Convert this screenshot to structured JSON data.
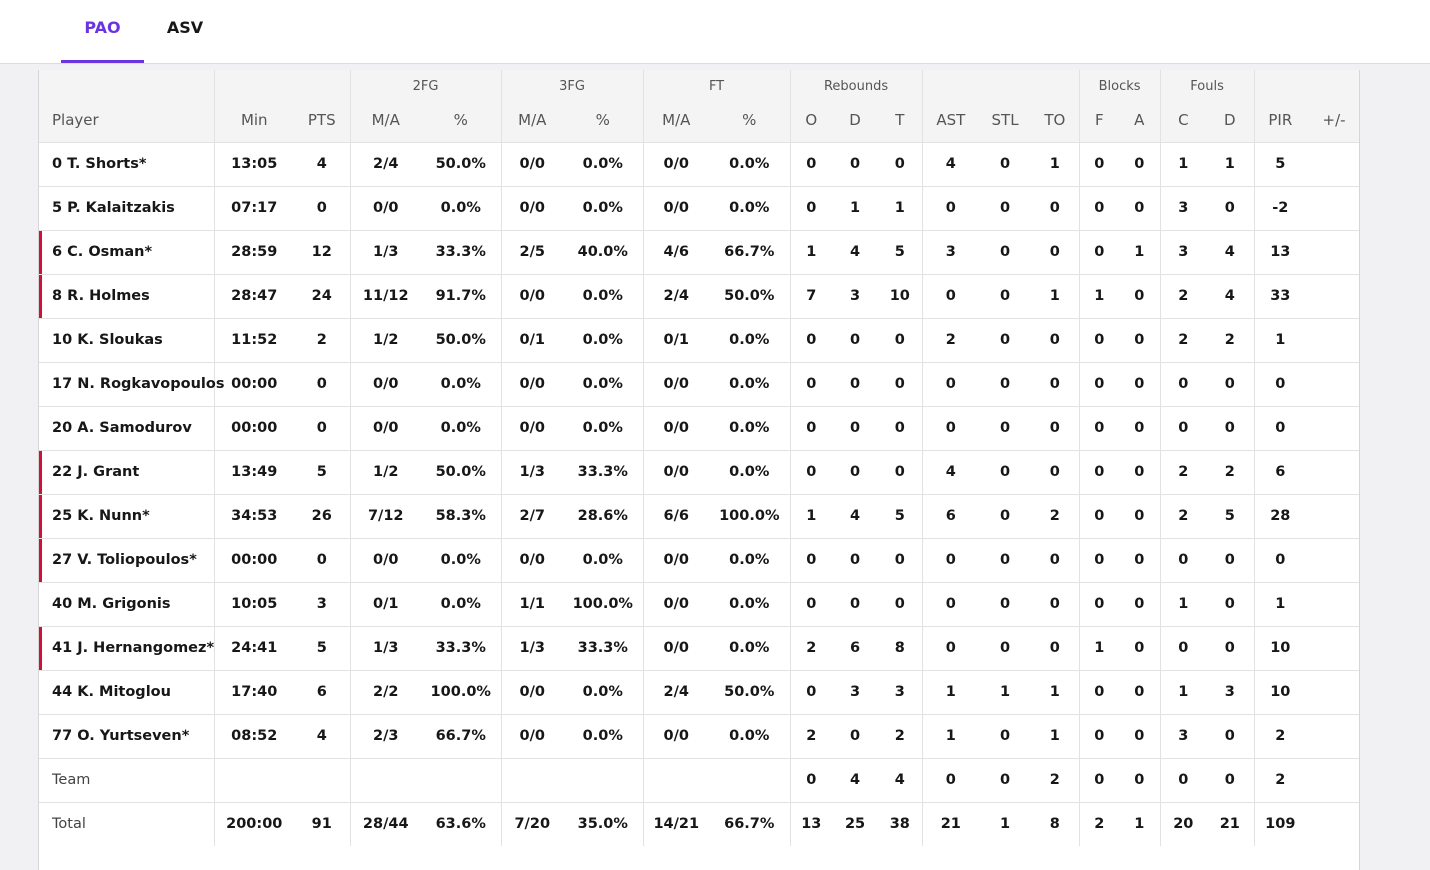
{
  "tabs": [
    {
      "label": "PAO",
      "active": true
    },
    {
      "label": "ASV",
      "active": false
    }
  ],
  "colors": {
    "accent": "#6a35e0",
    "starter_marker": "#d0103a"
  },
  "header": {
    "groups": [
      "",
      "",
      "",
      "2FG",
      "",
      "3FG",
      "",
      "FT",
      "",
      "Rebounds",
      "",
      "",
      "",
      "Blocks",
      "",
      "Fouls",
      "",
      "",
      ""
    ],
    "columns": [
      "Player",
      "Min",
      "PTS",
      "M/A",
      "%",
      "M/A",
      "%",
      "M/A",
      "%",
      "O",
      "D",
      "T",
      "AST",
      "STL",
      "TO",
      "F",
      "A",
      "C",
      "D",
      "PIR",
      "+/-"
    ]
  },
  "rows": [
    {
      "starter": false,
      "cells": [
        "0 T. Shorts*",
        "13:05",
        "4",
        "2/4",
        "50.0%",
        "0/0",
        "0.0%",
        "0/0",
        "0.0%",
        "0",
        "0",
        "0",
        "4",
        "0",
        "1",
        "0",
        "0",
        "1",
        "1",
        "5",
        ""
      ]
    },
    {
      "starter": false,
      "cells": [
        "5 P. Kalaitzakis",
        "07:17",
        "0",
        "0/0",
        "0.0%",
        "0/0",
        "0.0%",
        "0/0",
        "0.0%",
        "0",
        "1",
        "1",
        "0",
        "0",
        "0",
        "0",
        "0",
        "3",
        "0",
        "-2",
        ""
      ]
    },
    {
      "starter": true,
      "cells": [
        "6 C. Osman*",
        "28:59",
        "12",
        "1/3",
        "33.3%",
        "2/5",
        "40.0%",
        "4/6",
        "66.7%",
        "1",
        "4",
        "5",
        "3",
        "0",
        "0",
        "0",
        "1",
        "3",
        "4",
        "13",
        ""
      ]
    },
    {
      "starter": true,
      "cells": [
        "8 R. Holmes",
        "28:47",
        "24",
        "11/12",
        "91.7%",
        "0/0",
        "0.0%",
        "2/4",
        "50.0%",
        "7",
        "3",
        "10",
        "0",
        "0",
        "1",
        "1",
        "0",
        "2",
        "4",
        "33",
        ""
      ]
    },
    {
      "starter": false,
      "cells": [
        "10 K. Sloukas",
        "11:52",
        "2",
        "1/2",
        "50.0%",
        "0/1",
        "0.0%",
        "0/1",
        "0.0%",
        "0",
        "0",
        "0",
        "2",
        "0",
        "0",
        "0",
        "0",
        "2",
        "2",
        "1",
        ""
      ]
    },
    {
      "starter": false,
      "cells": [
        "17 N. Rogkavopoulos",
        "00:00",
        "0",
        "0/0",
        "0.0%",
        "0/0",
        "0.0%",
        "0/0",
        "0.0%",
        "0",
        "0",
        "0",
        "0",
        "0",
        "0",
        "0",
        "0",
        "0",
        "0",
        "0",
        ""
      ]
    },
    {
      "starter": false,
      "cells": [
        "20 A. Samodurov",
        "00:00",
        "0",
        "0/0",
        "0.0%",
        "0/0",
        "0.0%",
        "0/0",
        "0.0%",
        "0",
        "0",
        "0",
        "0",
        "0",
        "0",
        "0",
        "0",
        "0",
        "0",
        "0",
        ""
      ]
    },
    {
      "starter": true,
      "cells": [
        "22 J. Grant",
        "13:49",
        "5",
        "1/2",
        "50.0%",
        "1/3",
        "33.3%",
        "0/0",
        "0.0%",
        "0",
        "0",
        "0",
        "4",
        "0",
        "0",
        "0",
        "0",
        "2",
        "2",
        "6",
        ""
      ]
    },
    {
      "starter": true,
      "cells": [
        "25 K. Nunn*",
        "34:53",
        "26",
        "7/12",
        "58.3%",
        "2/7",
        "28.6%",
        "6/6",
        "100.0%",
        "1",
        "4",
        "5",
        "6",
        "0",
        "2",
        "0",
        "0",
        "2",
        "5",
        "28",
        ""
      ]
    },
    {
      "starter": true,
      "cells": [
        "27 V. Toliopoulos*",
        "00:00",
        "0",
        "0/0",
        "0.0%",
        "0/0",
        "0.0%",
        "0/0",
        "0.0%",
        "0",
        "0",
        "0",
        "0",
        "0",
        "0",
        "0",
        "0",
        "0",
        "0",
        "0",
        ""
      ]
    },
    {
      "starter": false,
      "cells": [
        "40 M. Grigonis",
        "10:05",
        "3",
        "0/1",
        "0.0%",
        "1/1",
        "100.0%",
        "0/0",
        "0.0%",
        "0",
        "0",
        "0",
        "0",
        "0",
        "0",
        "0",
        "0",
        "1",
        "0",
        "1",
        ""
      ]
    },
    {
      "starter": true,
      "cells": [
        "41 J. Hernangomez*",
        "24:41",
        "5",
        "1/3",
        "33.3%",
        "1/3",
        "33.3%",
        "0/0",
        "0.0%",
        "2",
        "6",
        "8",
        "0",
        "0",
        "0",
        "1",
        "0",
        "0",
        "0",
        "10",
        ""
      ]
    },
    {
      "starter": false,
      "cells": [
        "44 K. Mitoglou",
        "17:40",
        "6",
        "2/2",
        "100.0%",
        "0/0",
        "0.0%",
        "2/4",
        "50.0%",
        "0",
        "3",
        "3",
        "1",
        "1",
        "1",
        "0",
        "0",
        "1",
        "3",
        "10",
        ""
      ]
    },
    {
      "starter": false,
      "cells": [
        "77 O. Yurtseven*",
        "08:52",
        "4",
        "2/3",
        "66.7%",
        "0/0",
        "0.0%",
        "0/0",
        "0.0%",
        "2",
        "0",
        "2",
        "1",
        "0",
        "1",
        "0",
        "0",
        "3",
        "0",
        "2",
        ""
      ]
    },
    {
      "starter": false,
      "plain_label": true,
      "cells": [
        "Team",
        "",
        "",
        "",
        "",
        "",
        "",
        "",
        "",
        "0",
        "4",
        "4",
        "0",
        "0",
        "2",
        "0",
        "0",
        "0",
        "0",
        "2",
        ""
      ]
    },
    {
      "starter": false,
      "plain_label": true,
      "cells": [
        "Total",
        "200:00",
        "91",
        "28/44",
        "63.6%",
        "7/20",
        "35.0%",
        "14/21",
        "66.7%",
        "13",
        "25",
        "38",
        "21",
        "1",
        "8",
        "2",
        "1",
        "20",
        "21",
        "109",
        ""
      ]
    }
  ]
}
